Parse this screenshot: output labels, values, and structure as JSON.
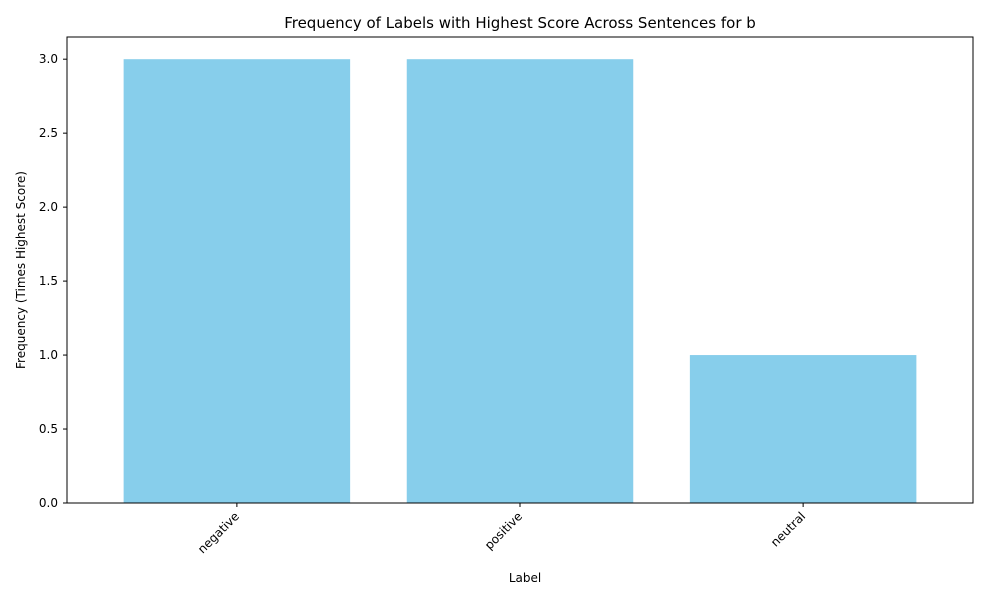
{
  "chart_data": {
    "type": "bar",
    "title": "Frequency of Labels with Highest Score Across Sentences for b",
    "xlabel": "Label",
    "ylabel": "Frequency (Times Highest Score)",
    "categories": [
      "negative",
      "positive",
      "neutral"
    ],
    "values": [
      3,
      3,
      1
    ],
    "ylim": [
      0,
      3.15
    ],
    "yticks": [
      "0.0",
      "0.5",
      "1.0",
      "1.5",
      "2.0",
      "2.5",
      "3.0"
    ],
    "bar_color": "#87ceeb",
    "grid": false,
    "legend": "none"
  }
}
